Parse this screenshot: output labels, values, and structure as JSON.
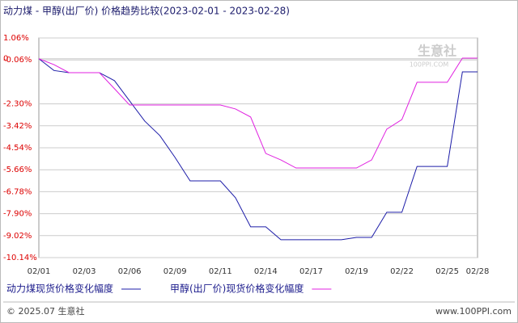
{
  "chart_data": {
    "type": "line",
    "title": "动力煤 - 甲醇(出厂价) 价格趋势比较(2023-02-01 - 2023-02-28)",
    "categories": [
      "02/01",
      null,
      null,
      "02/03",
      null,
      null,
      "02/06",
      null,
      null,
      "02/09",
      null,
      null,
      "02/11",
      null,
      null,
      "02/14",
      null,
      null,
      "02/17",
      null,
      null,
      "02/19",
      null,
      null,
      "02/22",
      null,
      null,
      "02/25",
      null,
      "02/28"
    ],
    "series": [
      {
        "name": "动力煤现货价格变化幅度",
        "color": "#1c1ca8",
        "values": [
          0,
          -0.6,
          -0.71,
          -0.71,
          -0.71,
          -1.12,
          -2.15,
          -3.18,
          -3.92,
          -5.03,
          -6.23,
          -6.23,
          -6.23,
          -7.09,
          -8.57,
          -8.57,
          -9.23,
          -9.23,
          -9.23,
          -9.23,
          -9.23,
          -9.11,
          -9.11,
          -7.83,
          -7.83,
          -5.49,
          -5.49,
          -5.49,
          -0.67,
          -0.67
        ]
      },
      {
        "name": "甲醇(出厂价)现货价格变化幅度",
        "color": "#e020e0",
        "values": [
          0,
          -0.3,
          -0.71,
          -0.71,
          -0.71,
          -1.53,
          -2.36,
          -2.36,
          -2.36,
          -2.36,
          -2.36,
          -2.36,
          -2.36,
          -2.56,
          -2.97,
          -4.83,
          -5.16,
          -5.57,
          -5.57,
          -5.57,
          -5.57,
          -5.57,
          -5.16,
          -3.59,
          -3.1,
          -1.2,
          -1.2,
          -1.2,
          0.03,
          0.03
        ]
      }
    ],
    "ylim": [
      -10.14,
      1.06
    ],
    "yticks": [
      {
        "value": 1.06,
        "label": "1.06%"
      },
      {
        "value": -0.06,
        "label": "-0.06%"
      },
      0,
      {
        "value": -2.3,
        "label": "-2.30%"
      },
      {
        "value": -3.42,
        "label": "-3.42%"
      },
      {
        "value": -4.54,
        "label": "-4.54%"
      },
      {
        "value": -5.66,
        "label": "-5.66%"
      },
      {
        "value": -6.78,
        "label": "-6.78%"
      },
      {
        "value": -7.9,
        "label": "-7.90%"
      },
      {
        "value": -9.02,
        "label": "-9.02%"
      },
      {
        "value": -10.14,
        "label": "-10.14%"
      }
    ],
    "grid": true,
    "watermark": "生意社",
    "watermark_sub": "100PPI.COM",
    "footer_left": "© 2025.07 生意社",
    "footer_right": "www.100PPI.com"
  }
}
